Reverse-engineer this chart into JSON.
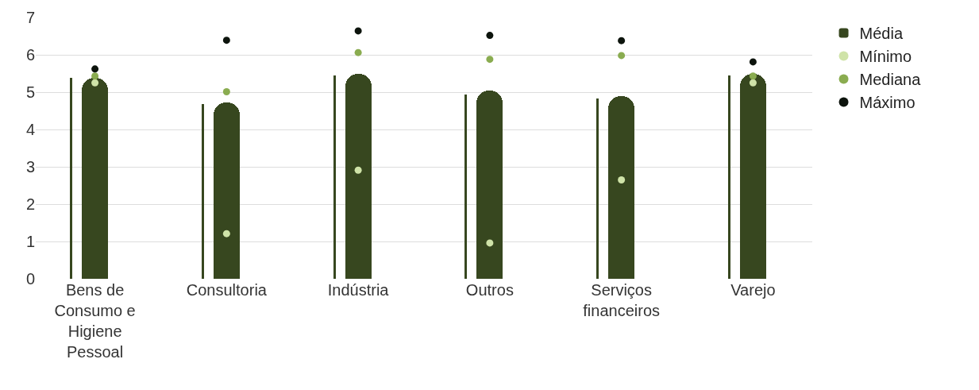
{
  "chart_data": {
    "type": "bar",
    "categories": [
      "Bens de Consumo e Higiene Pessoal",
      "Consultoria",
      "Indústria",
      "Outros",
      "Serviços financeiros",
      "Varejo"
    ],
    "series": [
      {
        "color": "#37471f",
        "values": [
          5.38,
          4.69,
          5.45,
          4.94,
          4.82,
          5.45
        ]
      },
      {
        "name": "Média",
        "color": "#37471f",
        "values": [
          5.39,
          4.72,
          5.48,
          5.04,
          4.89,
          5.48
        ]
      },
      {
        "name": "Mínimo",
        "type": "scatter",
        "color": "#cfe3a8",
        "values": [
          5.25,
          1.21,
          2.91,
          0.96,
          2.65,
          5.25
        ]
      },
      {
        "name": "Mediana",
        "type": "scatter",
        "color": "#8aac50",
        "values": [
          5.43,
          5.01,
          6.06,
          5.88,
          5.98,
          5.43
        ]
      },
      {
        "name": "Máximo",
        "type": "scatter",
        "color": "#0d140d",
        "values": [
          5.62,
          6.39,
          6.64,
          6.52,
          6.38,
          5.81
        ]
      }
    ],
    "ylim": [
      0,
      7
    ],
    "yticks": [
      0,
      1,
      2,
      3,
      4,
      5,
      6,
      7
    ],
    "grid": "y",
    "legend": "top right",
    "marker": "circle"
  }
}
